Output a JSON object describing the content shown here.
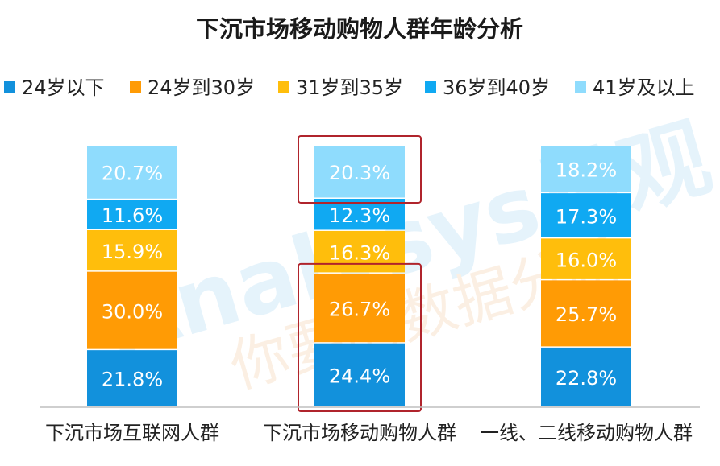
{
  "chart_data": {
    "type": "bar",
    "stacked": true,
    "orientation": "vertical",
    "percent": true,
    "title": "下沉市场移动购物人群年龄分析",
    "categories": [
      "下沉市场互联网人群",
      "下沉市场移动购物人群",
      "一线、二线移动购物人群"
    ],
    "series": [
      {
        "name": "24岁以下",
        "color": "#1291dc",
        "values": [
          21.8,
          24.4,
          22.8
        ],
        "labels": [
          "21.8%",
          "24.4%",
          "22.8%"
        ]
      },
      {
        "name": "24岁到30岁",
        "color": "#ff9b05",
        "values": [
          30.0,
          26.7,
          25.7
        ],
        "labels": [
          "30.0%",
          "26.7%",
          "25.7%"
        ]
      },
      {
        "name": "31岁到35岁",
        "color": "#ffbe0c",
        "values": [
          15.9,
          16.3,
          16.0
        ],
        "labels": [
          "15.9%",
          "16.3%",
          "16.0%"
        ]
      },
      {
        "name": "36岁到40岁",
        "color": "#10a9f2",
        "values": [
          11.6,
          12.3,
          17.3
        ],
        "labels": [
          "11.6%",
          "12.3%",
          "17.3%"
        ]
      },
      {
        "name": "41岁及以上",
        "color": "#8fdcfd",
        "values": [
          20.7,
          20.3,
          18.2
        ],
        "labels": [
          "20.7%",
          "20.3%",
          "18.2%"
        ]
      }
    ],
    "ylim": [
      0,
      100
    ],
    "grid": false,
    "legend": "top",
    "highlight_color": "#b0242c",
    "watermark": {
      "text": "Analysys易观",
      "subtext": "你要的数据分析",
      "color": "#e3f2fb"
    }
  }
}
